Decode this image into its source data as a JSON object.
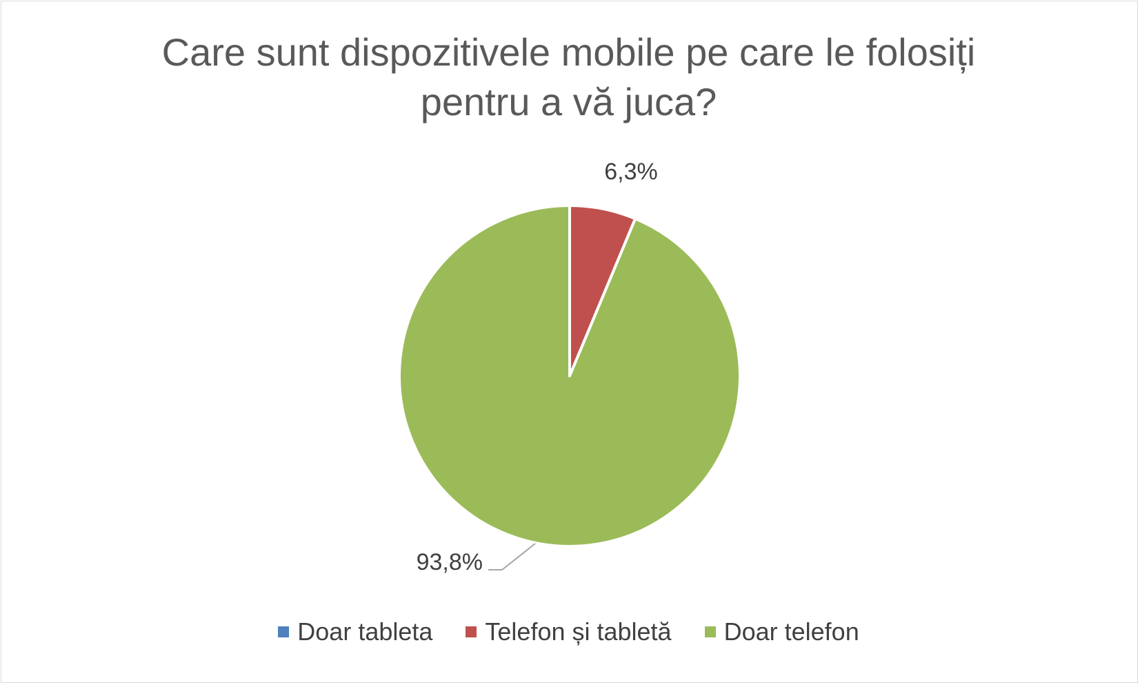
{
  "chart_data": {
    "type": "pie",
    "title_lines": [
      "Care sunt dispozitivele mobile pe care le folosiți",
      "pentru a vă juca?"
    ],
    "slices": [
      {
        "label": "Doar tableta",
        "value": 0,
        "display": "",
        "color": "#4F81BD"
      },
      {
        "label": "Telefon și tabletă",
        "value": 6.3,
        "display": "6,3%",
        "color": "#C0504D"
      },
      {
        "label": "Doar telefon",
        "value": 93.8,
        "display": "93,8%",
        "color": "#9BBB59"
      }
    ],
    "legend_position": "bottom",
    "start_angle": "12 o'clock, clockwise"
  }
}
